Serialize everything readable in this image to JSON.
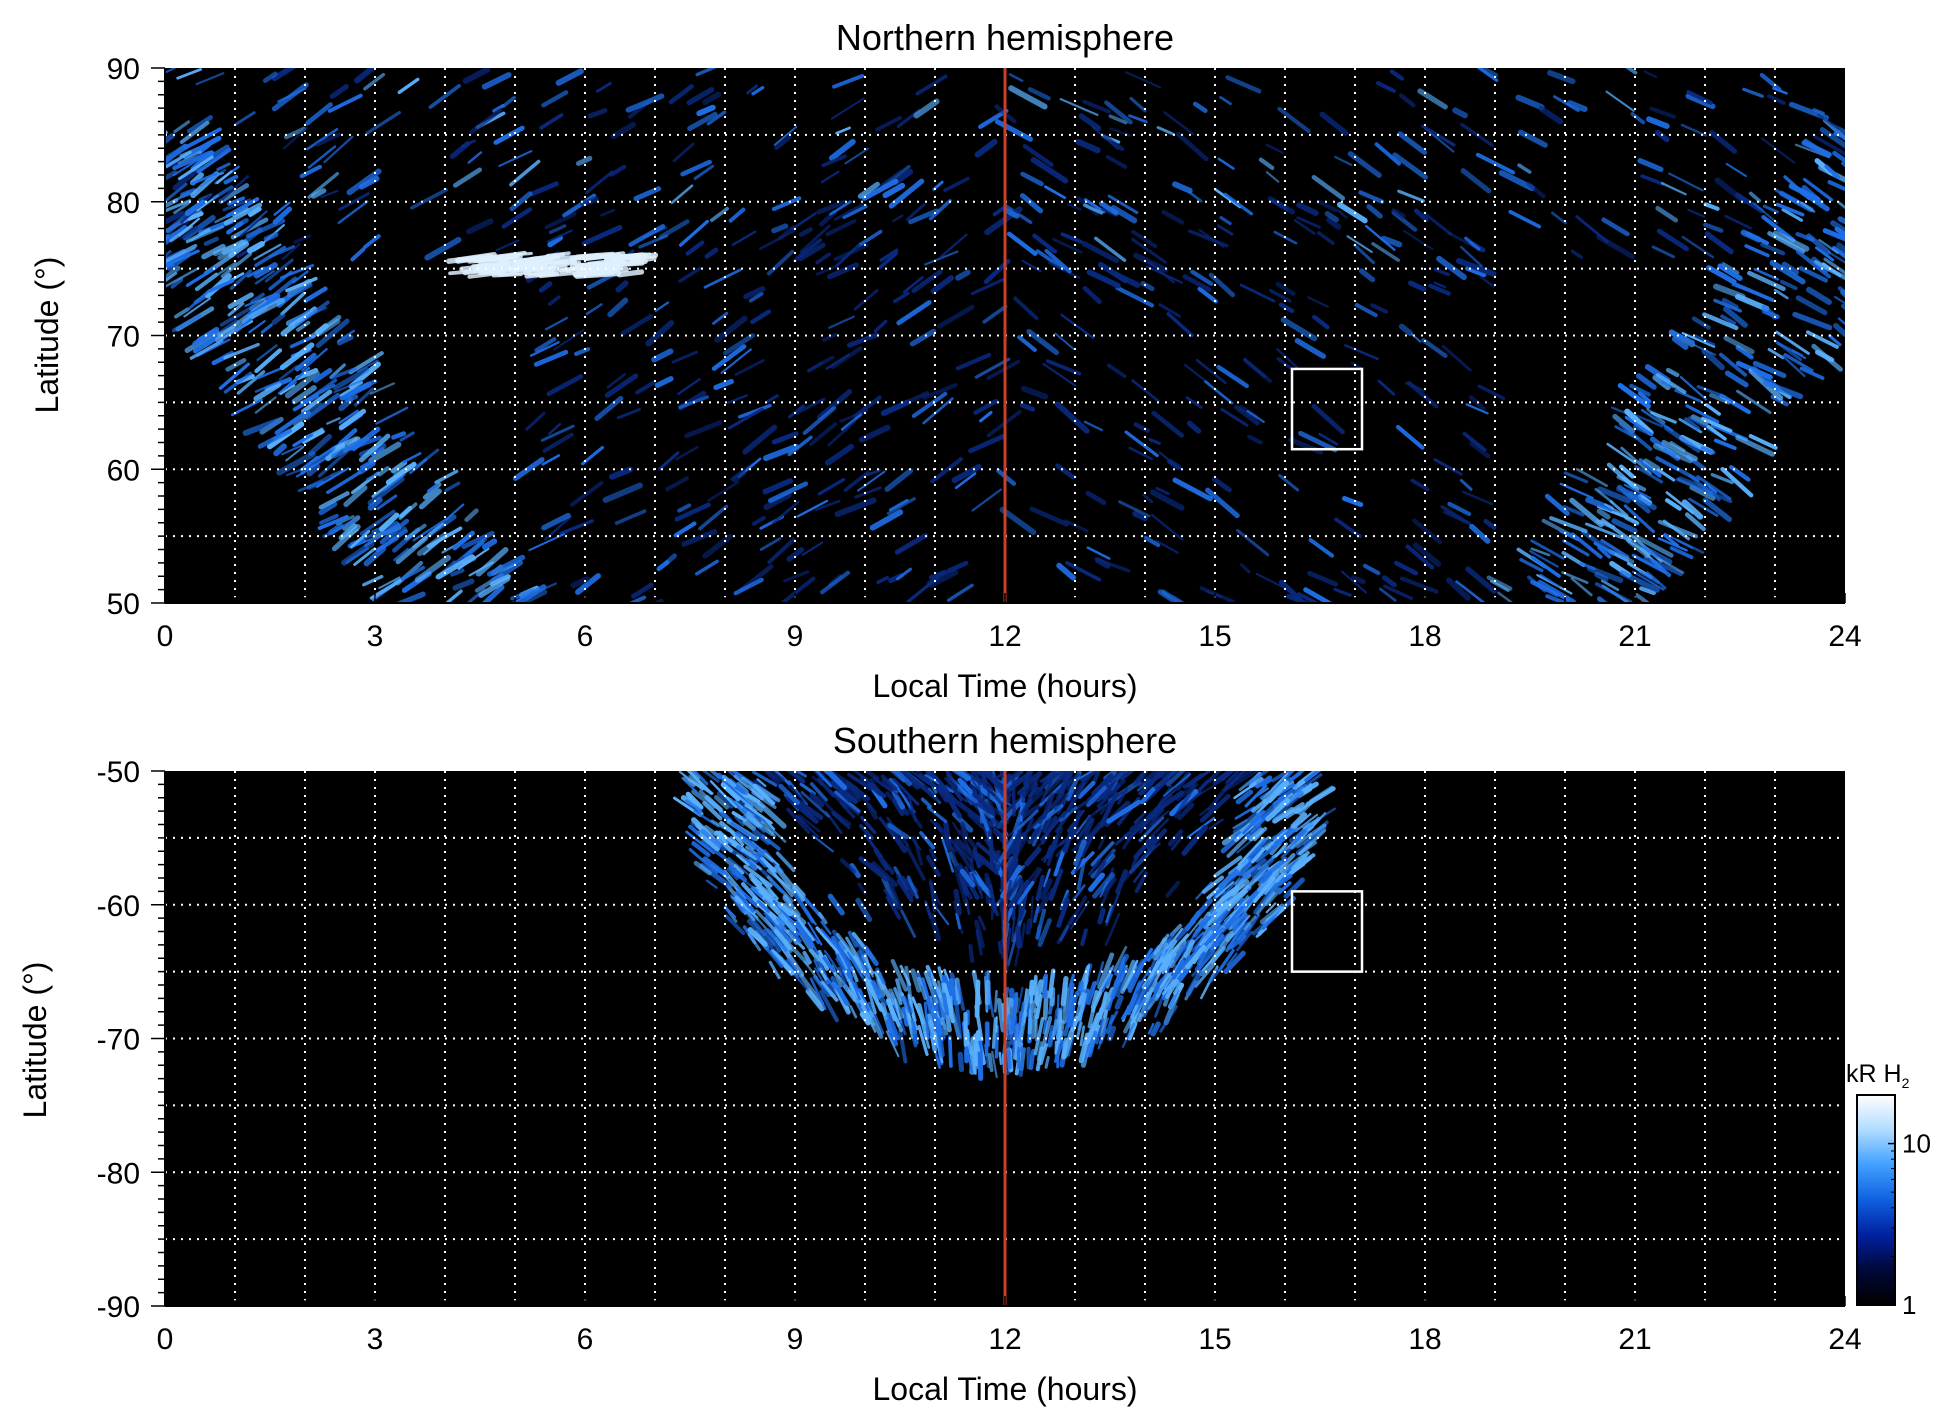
{
  "chart_data": [
    {
      "type": "heatmap",
      "title": "Northern hemisphere",
      "xlabel": "Local Time (hours)",
      "ylabel": "Latitude (°)",
      "xlim": [
        0,
        24
      ],
      "ylim": [
        50,
        90
      ],
      "x_ticks": [
        "0",
        "3",
        "6",
        "9",
        "12",
        "15",
        "18",
        "21",
        "24"
      ],
      "y_ticks": [
        "50",
        "60",
        "70",
        "80",
        "90"
      ],
      "grid": true,
      "grid_x_step": 1,
      "grid_y_step": 5,
      "noon_line": {
        "x": 12,
        "color": "#c8402a"
      },
      "box": {
        "x0": 16.1,
        "x1": 17.1,
        "y0": 61.5,
        "y1": 67.5,
        "color": "#ffffff"
      }
    },
    {
      "type": "heatmap",
      "title": "Southern hemisphere",
      "xlabel": "Local Time (hours)",
      "ylabel": "Latitude (°)",
      "xlim": [
        0,
        24
      ],
      "ylim": [
        -90,
        -50
      ],
      "x_ticks": [
        "0",
        "3",
        "6",
        "9",
        "12",
        "15",
        "18",
        "21",
        "24"
      ],
      "y_ticks": [
        "-50",
        "-60",
        "-70",
        "-80",
        "-90"
      ],
      "grid": true,
      "grid_x_step": 1,
      "grid_y_step": 5,
      "noon_line": {
        "x": 12,
        "color": "#c8402a"
      },
      "box": {
        "x0": 16.1,
        "x1": 17.1,
        "y0": -65,
        "y1": -59
      }
    }
  ],
  "colorbar": {
    "label_main": "kR H",
    "label_sub": "2",
    "ticks": [
      "10",
      "1"
    ],
    "range": [
      1,
      20
    ],
    "scale": "log",
    "colors": [
      "#000000",
      "#000838",
      "#0020a0",
      "#1060e0",
      "#40a0ff",
      "#b0dcff",
      "#ffffff"
    ]
  },
  "colors": {
    "background": "#000000",
    "aurora_dim": "#0a2a80",
    "aurora_mid": "#1f6fe8",
    "aurora_bright": "#5ab2ff",
    "aurora_peak": "#dff0ff"
  }
}
